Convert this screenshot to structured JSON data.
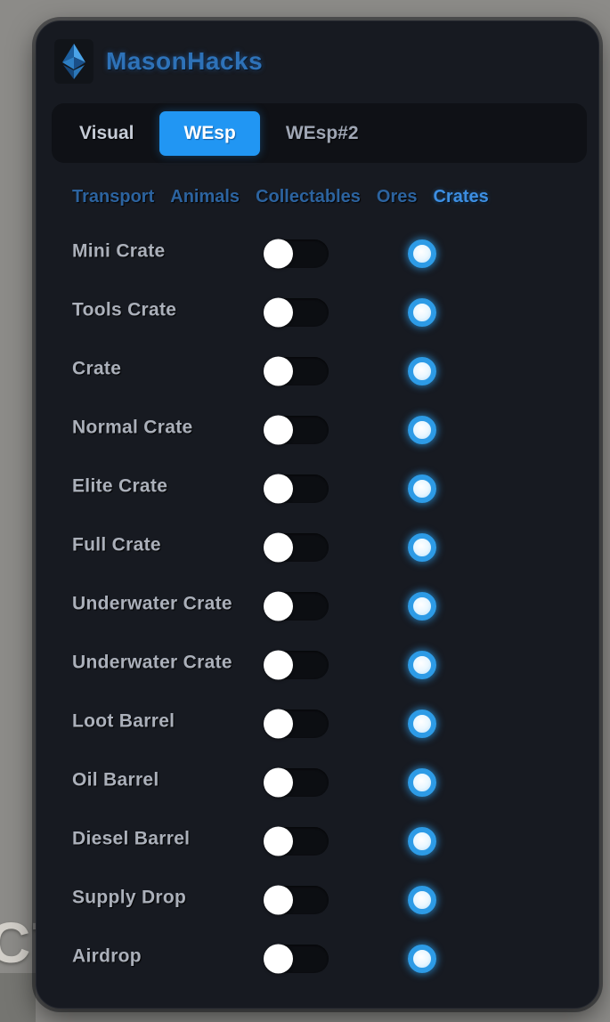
{
  "app": {
    "title": "MasonHacks",
    "logo_icon": "gem-icon",
    "background_text": "CT"
  },
  "tabs": [
    {
      "label": "Visual",
      "active": false
    },
    {
      "label": "WEsp",
      "active": true
    },
    {
      "label": "WEsp#2",
      "active": false
    }
  ],
  "subtabs": [
    {
      "label": "Transport",
      "active": false
    },
    {
      "label": "Animals",
      "active": false
    },
    {
      "label": "Collectables",
      "active": false
    },
    {
      "label": "Ores",
      "active": false
    },
    {
      "label": "Crates",
      "active": true
    }
  ],
  "rows": [
    {
      "label": "Mini Crate",
      "enabled": false,
      "swatch_color": "#2d9be6"
    },
    {
      "label": "Tools Crate",
      "enabled": false,
      "swatch_color": "#2d9be6"
    },
    {
      "label": "Crate",
      "enabled": false,
      "swatch_color": "#2d9be6"
    },
    {
      "label": "Normal Crate",
      "enabled": false,
      "swatch_color": "#2d9be6"
    },
    {
      "label": "Elite Crate",
      "enabled": false,
      "swatch_color": "#2d9be6"
    },
    {
      "label": "Full Crate",
      "enabled": false,
      "swatch_color": "#2d9be6"
    },
    {
      "label": "Underwater Crate",
      "enabled": false,
      "swatch_color": "#2d9be6"
    },
    {
      "label": "Underwater Crate",
      "enabled": false,
      "swatch_color": "#2d9be6"
    },
    {
      "label": "Loot Barrel",
      "enabled": false,
      "swatch_color": "#2d9be6"
    },
    {
      "label": "Oil Barrel",
      "enabled": false,
      "swatch_color": "#2d9be6"
    },
    {
      "label": "Diesel Barrel",
      "enabled": false,
      "swatch_color": "#2d9be6"
    },
    {
      "label": "Supply Drop",
      "enabled": false,
      "swatch_color": "#2d9be6"
    },
    {
      "label": "Airdrop",
      "enabled": false,
      "swatch_color": "#2d9be6"
    }
  ],
  "colors": {
    "accent": "#2196f3",
    "active_tab_bg": "#2196f3",
    "title_blue": "#2e72b8",
    "subtab_active": "#3d8ee2",
    "subtab_inactive": "#2c639f",
    "swatch_ring": "#2d9be6",
    "panel_bg": "#171a21",
    "page_bg": "#8c8b88"
  }
}
